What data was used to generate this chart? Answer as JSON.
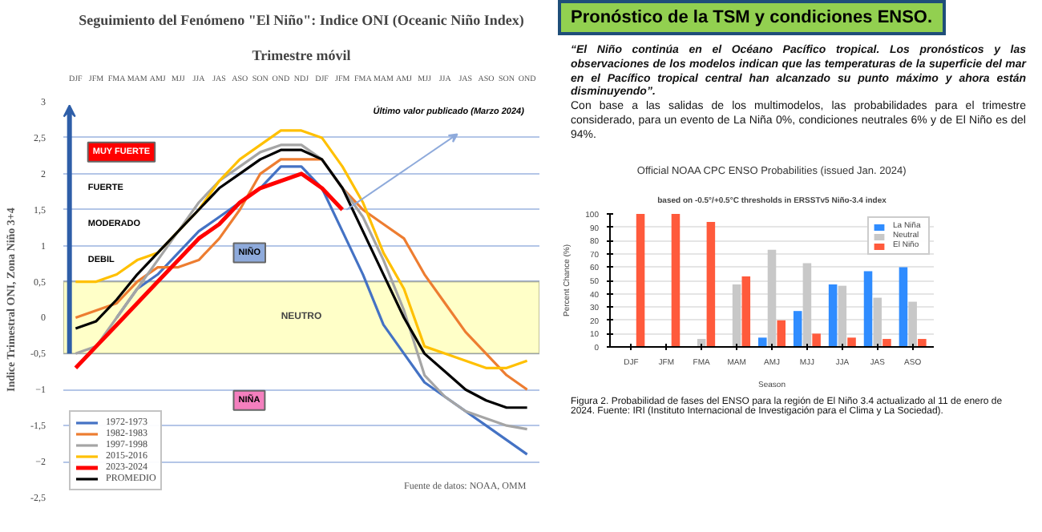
{
  "chart_data": [
    {
      "type": "line",
      "title": "Seguimiento del Fenómeno \"El Niño\": Indice ONI (Oceanic Niño Index)",
      "subtitle": "Trimestre móvil",
      "ylabel": "Indice Trimestral ONI, Zona Niño 3+4",
      "categories": [
        "DJF",
        "JFM",
        "FMA",
        "MAM",
        "AMJ",
        "MJJ",
        "JJA",
        "JAS",
        "ASO",
        "SON",
        "OND",
        "NDJ",
        "DJF",
        "JFM",
        "FMA",
        "MAM",
        "AMJ",
        "MJJ",
        "JJA",
        "JAS",
        "ASO",
        "SON",
        "OND"
      ],
      "ylim": [
        -2.5,
        3
      ],
      "yticks": [
        {
          "value": -2.5,
          "label": "-2,5"
        },
        -2,
        {
          "value": -1.5,
          "label": "-1,5"
        },
        -1,
        {
          "value": -0.5,
          "label": "-0,5"
        },
        0,
        {
          "value": 0.5,
          "label": "0,5"
        },
        1,
        {
          "value": 1.5,
          "label": "1,5"
        },
        2,
        {
          "value": 2.5,
          "label": "2,5"
        },
        3
      ],
      "grid": "y",
      "legend": "bottom left",
      "bands": [
        {
          "axis": "y",
          "from": -0.5,
          "to": 0.5,
          "label": "NEUTRO",
          "color": "#ffffc8"
        }
      ],
      "annotations": [
        "MUY FUERTE",
        "FUERTE",
        "MODERADO",
        "DEBIL",
        "NIÑO",
        "NIÑA",
        "Último valor publicado  (Marzo 2024)",
        "Fuente de datos: NOAA, OMM"
      ],
      "series": [
        {
          "name": "1972-1973",
          "color": "#4472c4",
          "values": [
            null,
            null,
            0.0,
            0.4,
            0.6,
            0.9,
            1.2,
            1.4,
            1.6,
            1.8,
            2.1,
            2.1,
            1.8,
            1.2,
            0.6,
            -0.1,
            -0.5,
            -0.9,
            -1.1,
            -1.3,
            -1.5,
            -1.7,
            -1.9
          ]
        },
        {
          "name": "1982-1983",
          "color": "#ed7d31",
          "values": [
            0.0,
            0.1,
            0.2,
            0.5,
            0.7,
            0.7,
            0.8,
            1.1,
            1.5,
            2.0,
            2.2,
            2.2,
            2.2,
            1.8,
            1.5,
            1.3,
            1.1,
            0.6,
            0.2,
            -0.2,
            -0.5,
            -0.8,
            -1.0
          ]
        },
        {
          "name": "1997-1998",
          "color": "#a5a5a5",
          "values": [
            -0.5,
            -0.4,
            0.0,
            0.4,
            0.8,
            1.2,
            1.6,
            1.9,
            2.1,
            2.3,
            2.4,
            2.4,
            2.2,
            1.8,
            1.4,
            0.8,
            0.1,
            -0.8,
            -1.1,
            -1.3,
            -1.4,
            -1.5,
            -1.55
          ]
        },
        {
          "name": "2015-2016",
          "color": "#ffc000",
          "values": [
            0.5,
            0.5,
            0.6,
            0.8,
            0.9,
            1.2,
            1.5,
            1.9,
            2.2,
            2.4,
            2.6,
            2.6,
            2.5,
            2.1,
            1.6,
            0.9,
            0.4,
            -0.4,
            -0.5,
            -0.6,
            -0.7,
            -0.7,
            -0.6
          ]
        },
        {
          "name": "2023-2024",
          "color": "#ff0000",
          "values": [
            -0.7,
            -0.4,
            -0.1,
            0.2,
            0.5,
            0.8,
            1.1,
            1.3,
            1.6,
            1.8,
            1.9,
            2.0,
            1.8,
            1.5,
            null,
            null,
            null,
            null,
            null,
            null,
            null,
            null,
            null
          ]
        },
        {
          "name": "PROMEDIO",
          "color": "#000000",
          "values": [
            -0.15,
            -0.05,
            0.25,
            0.6,
            0.9,
            1.2,
            1.5,
            1.8,
            2.0,
            2.2,
            2.33,
            2.33,
            2.2,
            1.8,
            1.2,
            0.6,
            0.0,
            -0.5,
            -0.75,
            -1.0,
            -1.15,
            -1.25,
            -1.25
          ]
        }
      ]
    },
    {
      "type": "other",
      "title": "Pronóstico de la TSM y condiciones ENSO.",
      "annotations": [
        "“El Niño continúa en el Océano Pacífico tropical. Los pronósticos y las observaciones de los modelos indican que las temperaturas de la superficie del mar en el Pacífico tropical central han alcanzado su punto máximo y ahora están disminuyendo”.",
        "Con base a las salidas de los multimodelos, las probabilidades para el trimestre considerado, para un evento de La Niña 0%, condiciones neutrales 6% y de  El Niño es del 94%."
      ]
    },
    {
      "type": "bar",
      "title": "Official NOAA CPC ENSO Probabilities (issued Jan. 2024)",
      "subtitle": "based on -0.5°/+0.5°C thresholds in ERSSTv5 Niño-3.4 index",
      "xlabel": "Season",
      "ylabel": "Percent Chance (%)",
      "categories": [
        "DJF",
        "JFM",
        "FMA",
        "MAM",
        "AMJ",
        "MJJ",
        "JJA",
        "JAS",
        "ASO"
      ],
      "ylim": [
        0,
        100
      ],
      "yticks": [
        0,
        10,
        20,
        30,
        40,
        50,
        60,
        70,
        80,
        90,
        100
      ],
      "grid": "y",
      "legend": "top right",
      "annotations": [
        "Figura 2. Probabilidad de fases del ENSO para la región de El Niño 3.4 actualizado al 11 de enero de 2024. Fuente: IRI (Instituto Internacional de Investigación para el Clima y La Sociedad)."
      ],
      "series": [
        {
          "name": "La Niña",
          "color": "#2f8cff",
          "values": [
            0,
            0,
            0,
            0,
            7,
            27,
            47,
            57,
            60
          ]
        },
        {
          "name": "Neutral",
          "color": "#c8c8c8",
          "values": [
            0,
            0,
            6,
            47,
            73,
            63,
            46,
            37,
            34
          ]
        },
        {
          "name": "El Niño",
          "color": "#ff5a3c",
          "values": [
            100,
            100,
            94,
            53,
            20,
            10,
            7,
            6,
            6
          ]
        }
      ]
    }
  ]
}
